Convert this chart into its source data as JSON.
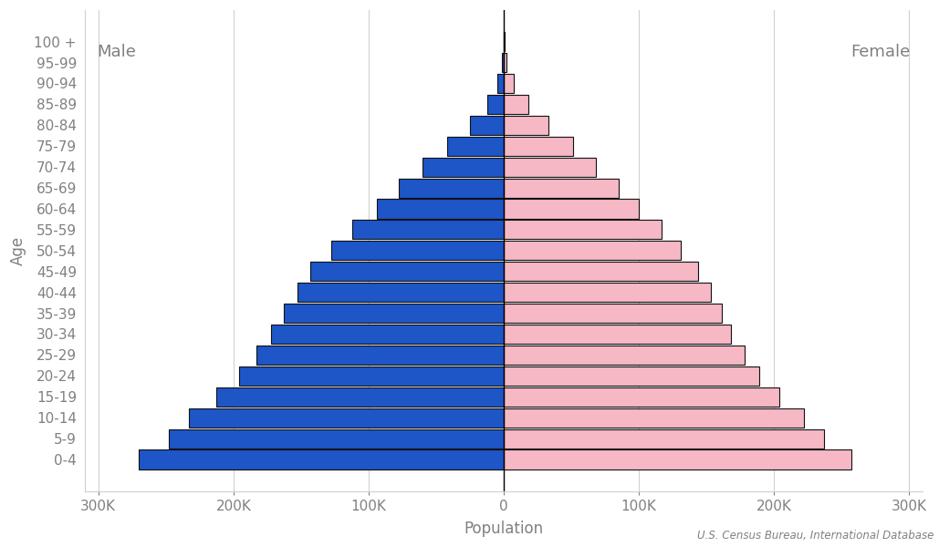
{
  "age_groups": [
    "0-4",
    "5-9",
    "10-14",
    "15-19",
    "20-24",
    "25-29",
    "30-34",
    "35-39",
    "40-44",
    "45-49",
    "50-54",
    "55-59",
    "60-64",
    "65-69",
    "70-74",
    "75-79",
    "80-84",
    "85-89",
    "90-94",
    "95-99",
    "100 +"
  ],
  "male": [
    270000,
    248000,
    233000,
    213000,
    196000,
    183000,
    172000,
    163000,
    153000,
    143000,
    128000,
    112000,
    94000,
    78000,
    60000,
    42000,
    25000,
    12000,
    4500,
    1200,
    200
  ],
  "female": [
    257000,
    237000,
    222000,
    204000,
    189000,
    178000,
    168000,
    161000,
    153000,
    144000,
    131000,
    117000,
    100000,
    85000,
    68000,
    51000,
    33000,
    18000,
    7500,
    2200,
    500
  ],
  "male_color": "#1e56c8",
  "female_color": "#f5b8c4",
  "bar_edgecolor": "#111111",
  "background_color": "#ffffff",
  "xlabel": "Population",
  "ylabel": "Age",
  "xlim": 310000,
  "tick_values": [
    0,
    100000,
    200000,
    300000
  ],
  "tick_labels": [
    "0",
    "100K",
    "200K",
    "300K"
  ],
  "male_label": "Male",
  "female_label": "Female",
  "source_text": "U.S. Census Bureau, International Database",
  "gridline_color": "#d0d0d0",
  "text_color": "#808080",
  "label_fontsize": 12,
  "tick_fontsize": 11,
  "annotation_fontsize": 13
}
